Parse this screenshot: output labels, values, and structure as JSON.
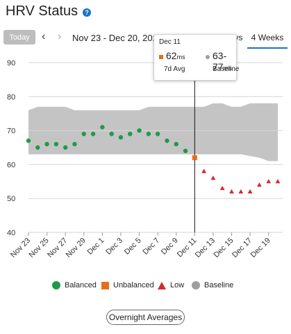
{
  "header": {
    "title": "HRV Status"
  },
  "toolbar": {
    "today_label": "Today",
    "date_range": "Nov 23 - Dec 20, 2024",
    "tabs": [
      {
        "label": "7 Days",
        "selected": false
      },
      {
        "label": "4 Weeks",
        "selected": true
      }
    ]
  },
  "tooltip": {
    "date": "Dec 11",
    "avg_value": "62",
    "avg_unit": "ms",
    "avg_label": "7d Avg",
    "baseline_value": "63-77",
    "baseline_unit": "ms",
    "baseline_label": "Baseline"
  },
  "legend": [
    {
      "label": "Balanced",
      "shape": "circle",
      "color": "#1e9a4a"
    },
    {
      "label": "Unbalanced",
      "shape": "square",
      "color": "#e86d1a"
    },
    {
      "label": "Low",
      "shape": "triangle",
      "color": "#d42a2a"
    },
    {
      "label": "Baseline",
      "shape": "circle",
      "color": "#9e9e9e"
    }
  ],
  "overnight_button": "Overnight Averages",
  "chart_data": {
    "type": "scatter",
    "x_dates": [
      "Nov 23",
      "Nov 24",
      "Nov 25",
      "Nov 26",
      "Nov 27",
      "Nov 28",
      "Nov 29",
      "Nov 30",
      "Dec 1",
      "Dec 2",
      "Dec 3",
      "Dec 4",
      "Dec 5",
      "Dec 6",
      "Dec 7",
      "Dec 8",
      "Dec 9",
      "Dec 10",
      "Dec 11",
      "Dec 12",
      "Dec 13",
      "Dec 14",
      "Dec 15",
      "Dec 16",
      "Dec 17",
      "Dec 18",
      "Dec 19",
      "Dec 20"
    ],
    "x_tick_labels": [
      "Nov 23",
      "Nov 25",
      "Nov 27",
      "Nov 29",
      "Dec 1",
      "Dec 3",
      "Dec 5",
      "Dec 7",
      "Dec 9",
      "Dec 11",
      "Dec 13",
      "Dec 15",
      "Dec 17",
      "Dec 19"
    ],
    "y_ticks": [
      40,
      50,
      60,
      70,
      80,
      90
    ],
    "ylim": [
      40,
      90
    ],
    "baseline_band": {
      "low": [
        63,
        63,
        63,
        63,
        63,
        63,
        63,
        63,
        63,
        63,
        63,
        63,
        63,
        63,
        63,
        63,
        63,
        63,
        63,
        63,
        63,
        63,
        63,
        63,
        62.5,
        62,
        61,
        61
      ],
      "high": [
        76,
        77,
        77,
        77,
        77,
        76,
        76,
        76,
        76,
        76,
        76,
        76,
        76,
        77,
        77,
        77,
        77,
        77,
        77,
        77,
        78,
        78,
        77,
        77,
        78,
        78,
        78,
        78
      ]
    },
    "series": [
      {
        "status": "balanced",
        "color": "#1e9a4a",
        "points": [
          [
            "Nov 23",
            67
          ],
          [
            "Nov 24",
            65
          ],
          [
            "Nov 25",
            66
          ],
          [
            "Nov 26",
            66
          ],
          [
            "Nov 27",
            65
          ],
          [
            "Nov 28",
            66
          ],
          [
            "Nov 29",
            69
          ],
          [
            "Nov 30",
            69
          ],
          [
            "Dec 1",
            71
          ],
          [
            "Dec 2",
            69
          ],
          [
            "Dec 3",
            68
          ],
          [
            "Dec 4",
            69
          ],
          [
            "Dec 5",
            70
          ],
          [
            "Dec 6",
            69
          ],
          [
            "Dec 7",
            69
          ],
          [
            "Dec 8",
            67
          ],
          [
            "Dec 9",
            66
          ],
          [
            "Dec 10",
            64
          ]
        ]
      },
      {
        "status": "unbalanced",
        "color": "#e86d1a",
        "points": [
          [
            "Dec 11",
            62
          ]
        ]
      },
      {
        "status": "low",
        "color": "#d42a2a",
        "points": [
          [
            "Dec 12",
            58
          ],
          [
            "Dec 13",
            56
          ],
          [
            "Dec 14",
            53
          ],
          [
            "Dec 15",
            52
          ],
          [
            "Dec 16",
            52
          ],
          [
            "Dec 17",
            52
          ],
          [
            "Dec 18",
            54
          ],
          [
            "Dec 19",
            55
          ],
          [
            "Dec 20",
            55
          ]
        ]
      }
    ],
    "selected_date": "Dec 11"
  }
}
